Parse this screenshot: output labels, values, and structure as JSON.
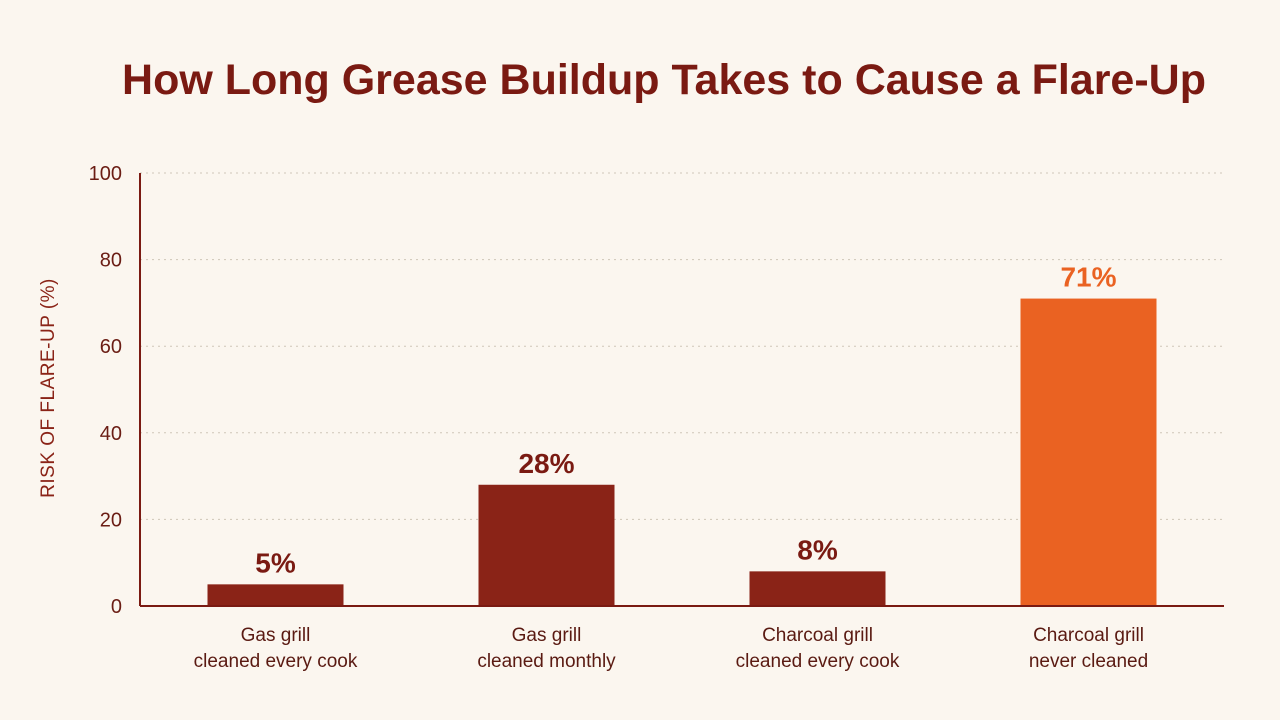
{
  "chart_data": {
    "type": "bar",
    "title": "How Long Grease Buildup Takes to Cause a Flare-Up",
    "ylabel": "RISK OF FLARE-UP (%)",
    "xlabel": "",
    "ylim": [
      0,
      100
    ],
    "yticks": [
      0,
      20,
      40,
      60,
      80,
      100
    ],
    "grid": true,
    "value_suffix": "%",
    "categories": [
      [
        "Gas grill",
        "cleaned every cook"
      ],
      [
        "Gas grill",
        "cleaned monthly"
      ],
      [
        "Charcoal grill",
        "cleaned every cook"
      ],
      [
        "Charcoal grill",
        "never cleaned"
      ]
    ],
    "values": [
      5,
      28,
      8,
      71
    ],
    "value_labels": [
      "5%",
      "28%",
      "8%",
      "71%"
    ],
    "bar_colors": [
      "#8a2317",
      "#8a2317",
      "#8a2317",
      "#ea6222"
    ],
    "label_colors": [
      "#7a1a12",
      "#7a1a12",
      "#7a1a12",
      "#ea6222"
    ]
  }
}
